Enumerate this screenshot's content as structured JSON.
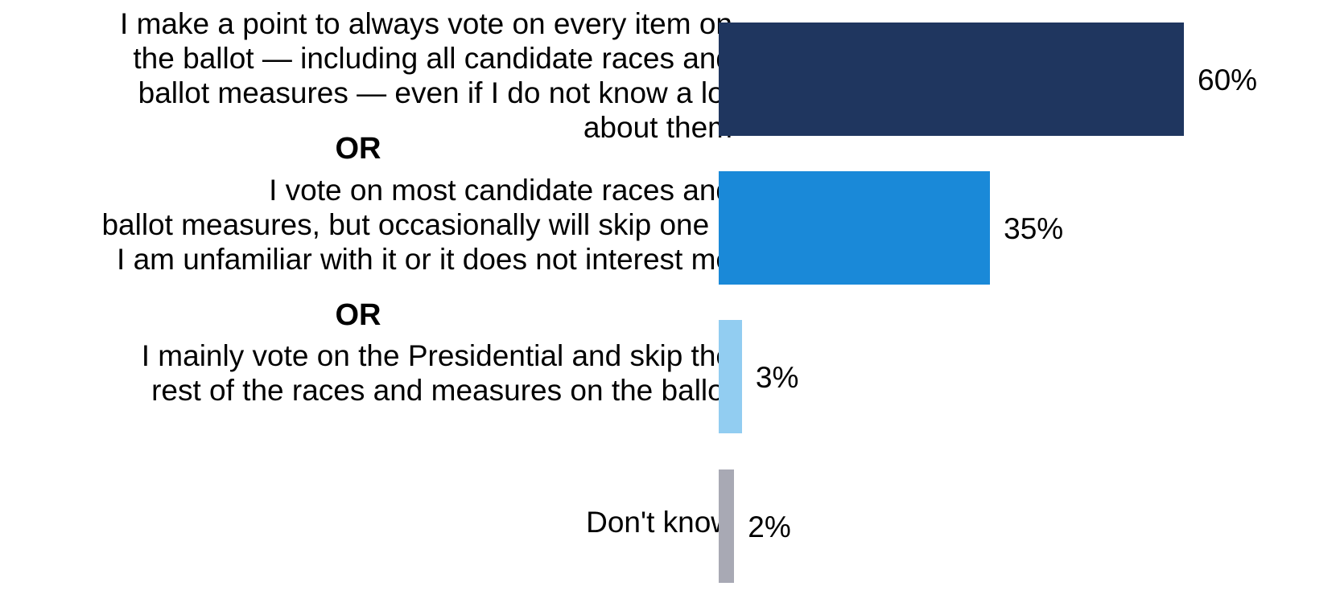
{
  "chart_data": {
    "type": "bar",
    "orientation": "horizontal",
    "categories": [
      "I make a point to always vote on every item on the ballot — including all candidate races and ballot measures — even if I do not know a lot about them",
      "I vote on most candidate races and ballot measures, but occasionally will skip one if I am unfamiliar with it or it does not interest me",
      "I mainly vote on the Presidential and skip the rest of the races and measures on the ballot",
      "Don't know"
    ],
    "category_lines": [
      [
        "I make a point to always vote on every item on",
        "the ballot — including all candidate races and",
        "ballot measures — even if I do not know a lot",
        "about them"
      ],
      [
        "I vote on most candidate races and",
        "ballot measures, but occasionally will skip one if",
        "I am unfamiliar with it or it does not interest me"
      ],
      [
        "I mainly vote on the Presidential and skip the",
        "rest of the races and measures on the ballot"
      ],
      [
        "Don't know"
      ]
    ],
    "values": [
      60,
      35,
      3,
      2
    ],
    "value_labels": [
      "60%",
      "35%",
      "3%",
      "2%"
    ],
    "colors": [
      "#1f365f",
      "#1a89d8",
      "#92cdf1",
      "#a8a9b4"
    ],
    "separators": [
      "OR",
      "OR"
    ],
    "xlim": [
      0,
      60
    ],
    "grid": false,
    "legend": false
  }
}
